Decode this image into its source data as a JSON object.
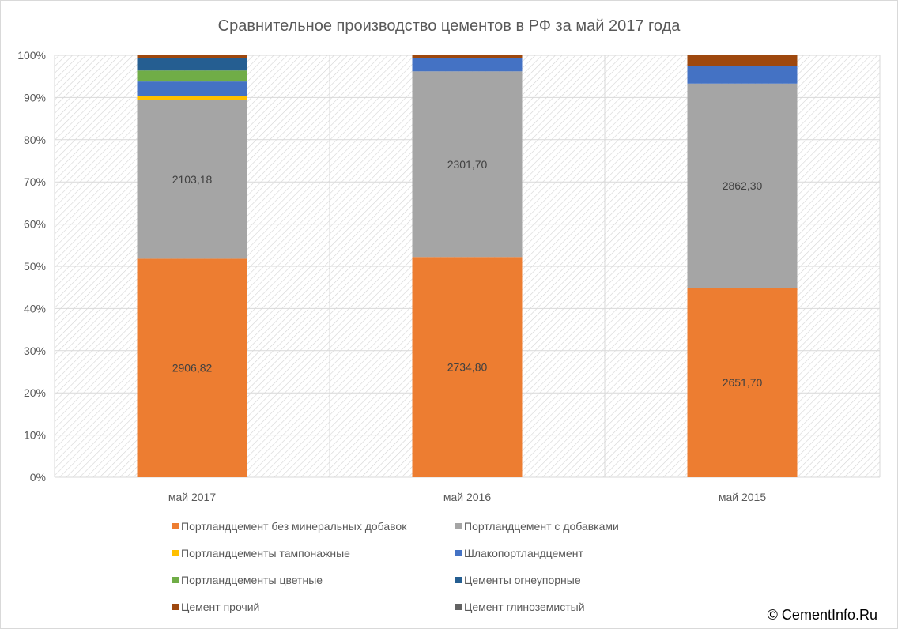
{
  "chart_data": {
    "type": "bar",
    "stacked": true,
    "percent": true,
    "title": "Сравнительное производство цементов в РФ за май 2017 года",
    "categories": [
      "май 2017",
      "май 2016",
      "май 2015"
    ],
    "y_ticks": [
      "0%",
      "10%",
      "20%",
      "30%",
      "40%",
      "50%",
      "60%",
      "70%",
      "80%",
      "90%",
      "100%"
    ],
    "ylim": [
      0,
      100
    ],
    "legend_position": "bottom",
    "series": [
      {
        "name": "Портландцемент без минеральных добавок",
        "color": "#ED7D31",
        "percent": [
          51.8,
          52.2,
          44.9
        ],
        "labels": [
          "2906,82",
          "2734,80",
          "2651,70"
        ]
      },
      {
        "name": "Портландцемент с добавками",
        "color": "#A5A5A5",
        "percent": [
          37.6,
          44.0,
          48.4
        ],
        "labels": [
          "2103,18",
          "2301,70",
          "2862,30"
        ]
      },
      {
        "name": "Портландцементы тампонажные",
        "color": "#FFC000",
        "percent": [
          1.0,
          0.0,
          0.0
        ],
        "labels": [
          "",
          "",
          ""
        ]
      },
      {
        "name": "Шлакопортландцемент",
        "color": "#4472C4",
        "percent": [
          3.4,
          3.2,
          4.2
        ],
        "labels": [
          "",
          "",
          ""
        ]
      },
      {
        "name": "Портландцементы цветные",
        "color": "#70AD47",
        "percent": [
          2.6,
          0.0,
          0.0
        ],
        "labels": [
          "",
          "",
          ""
        ]
      },
      {
        "name": "Цементы огнеупорные",
        "color": "#255E91",
        "percent": [
          2.9,
          0.0,
          0.0
        ],
        "labels": [
          "",
          "",
          ""
        ]
      },
      {
        "name": "Цемент прочий",
        "color": "#9E480E",
        "percent": [
          0.7,
          0.6,
          2.5
        ],
        "labels": [
          "",
          "",
          ""
        ]
      },
      {
        "name": "Цемент глиноземистый",
        "color": "#636363",
        "percent": [
          0.0,
          0.0,
          0.0
        ],
        "labels": [
          "",
          "",
          ""
        ]
      }
    ]
  },
  "copyright": "© CementInfo.Ru"
}
